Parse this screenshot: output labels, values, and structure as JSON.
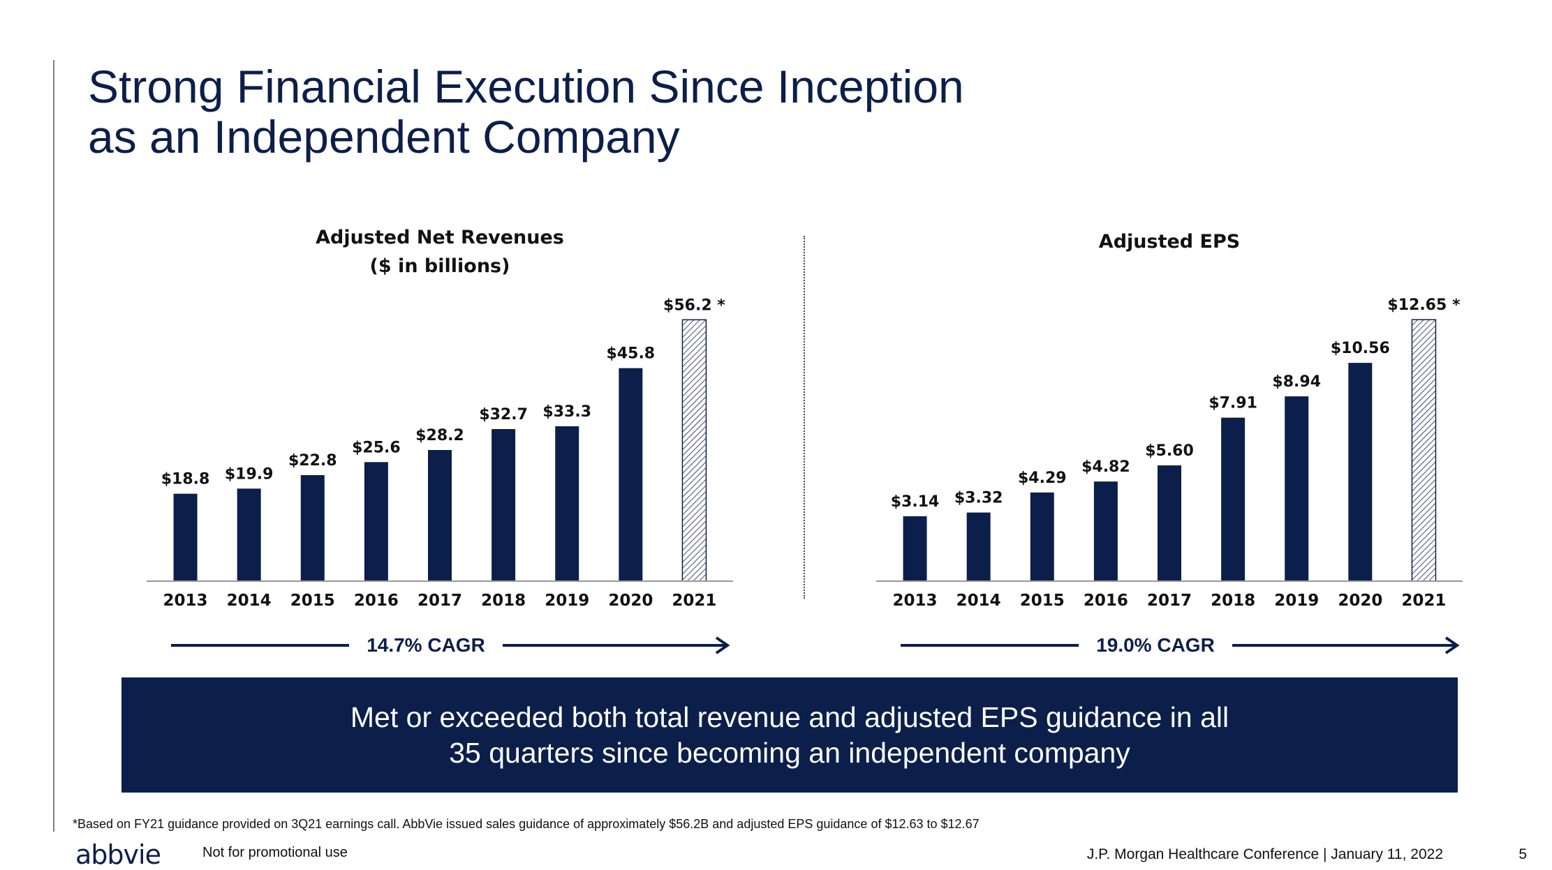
{
  "slide": {
    "title_line1": "Strong Financial Execution Since Inception",
    "title_line2": "as an Independent Company",
    "banner_line1": "Met or exceeded both total revenue and adjusted EPS guidance in all",
    "banner_line2": "35 quarters since becoming an independent company",
    "footnote": "*Based on FY21 guidance provided on 3Q21 earnings call. AbbVie issued sales guidance of approximately $56.2B and adjusted EPS guidance of $12.63 to $12.67",
    "logo": "abbvie",
    "disclaimer": "Not for promotional use",
    "conference": "J.P. Morgan Healthcare Conference | January 11, 2022",
    "page_number": "5"
  },
  "colors": {
    "navy": "#0c1f4a",
    "text": "#111111",
    "axis": "#999999"
  },
  "chart_data": [
    {
      "type": "bar",
      "title": "Adjusted Net Revenues",
      "subtitle": "($ in billions)",
      "categories": [
        "2013",
        "2014",
        "2015",
        "2016",
        "2017",
        "2018",
        "2019",
        "2020",
        "2021"
      ],
      "values": [
        18.8,
        19.9,
        22.8,
        25.6,
        28.2,
        32.7,
        33.3,
        45.8,
        56.2
      ],
      "data_labels": [
        "$18.8",
        "$19.9",
        "$22.8",
        "$25.6",
        "$28.2",
        "$32.7",
        "$33.3",
        "$45.8",
        "$56.2 *"
      ],
      "hatched_last": true,
      "ylim": [
        0,
        60
      ],
      "cagr_label": "14.7% CAGR"
    },
    {
      "type": "bar",
      "title": "Adjusted EPS",
      "categories": [
        "2013",
        "2014",
        "2015",
        "2016",
        "2017",
        "2018",
        "2019",
        "2020",
        "2021"
      ],
      "values": [
        3.14,
        3.32,
        4.29,
        4.82,
        5.6,
        7.91,
        8.94,
        10.56,
        12.65
      ],
      "data_labels": [
        "$3.14",
        "$3.32",
        "$4.29",
        "$4.82",
        "$5.60",
        "$7.91",
        "$8.94",
        "$10.56",
        "$12.65 *"
      ],
      "hatched_last": true,
      "ylim": [
        0,
        13.5
      ],
      "cagr_label": "19.0% CAGR"
    }
  ]
}
